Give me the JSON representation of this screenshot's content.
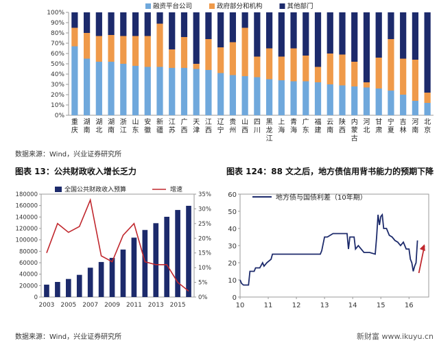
{
  "colors": {
    "light_blue": "#6fa8dc",
    "orange": "#ef9a4a",
    "navy": "#1c2a6b",
    "red": "#c0272d",
    "axis": "#999999",
    "bg": "#ffffff"
  },
  "source_top": "数据来源：Wind，兴业证券研究所",
  "source_bottom": "数据来源：Wind，兴业证券研究所",
  "titles": {
    "left": "图表 13：公共财政收入增长乏力",
    "right": "图表 124：88 文之后，地方债信用背书能力的预期下降"
  },
  "watermark": "新财富 www.ikuyu.cn",
  "chart_data": [
    {
      "type": "bar",
      "stacked": true,
      "legend_position": "top",
      "categories": [
        "重庆",
        "湖南",
        "湖北",
        "湖南",
        "浙江",
        "山东",
        "安徽",
        "新疆",
        "江苏",
        "广西",
        "天津",
        "江西",
        "辽宁",
        "贵州",
        "山西",
        "四川",
        "黑龙江",
        "上海",
        "青海",
        "广东",
        "福建",
        "云南",
        "陕西",
        "内蒙古",
        "河北",
        "甘肃",
        "宁夏",
        "吉林",
        "河南",
        "北京"
      ],
      "series": [
        {
          "name": "融资平台公司",
          "values": [
            67,
            55,
            52,
            52,
            50,
            48,
            47,
            47,
            46,
            46,
            45,
            44,
            41,
            39,
            38,
            37,
            35,
            34,
            33,
            33,
            32,
            30,
            29,
            28,
            27,
            26,
            24,
            20,
            14,
            12
          ]
        },
        {
          "name": "政府部分和机构",
          "values": [
            18,
            25,
            25,
            26,
            27,
            29,
            30,
            42,
            18,
            30,
            5,
            30,
            25,
            32,
            47,
            20,
            30,
            23,
            32,
            25,
            15,
            30,
            30,
            24,
            5,
            30,
            50,
            35,
            40,
            10
          ]
        },
        {
          "name": "其他部门",
          "values": [
            15,
            20,
            23,
            22,
            23,
            23,
            23,
            11,
            36,
            24,
            50,
            26,
            34,
            29,
            15,
            43,
            35,
            43,
            35,
            42,
            53,
            40,
            41,
            48,
            68,
            44,
            26,
            45,
            46,
            78
          ]
        }
      ],
      "ylim": [
        0,
        100
      ],
      "yticks": [
        "0%",
        "10%",
        "20%",
        "30%",
        "40%",
        "50%",
        "60%",
        "70%",
        "80%",
        "90%",
        "100%"
      ]
    },
    {
      "type": "bar",
      "legend_position": "top",
      "x": [
        2003,
        2004,
        2005,
        2006,
        2007,
        2008,
        2009,
        2010,
        2011,
        2012,
        2013,
        2014,
        2015,
        2016
      ],
      "xticks": [
        "2003",
        "2005",
        "2007",
        "2009",
        "2011",
        "2013",
        "2015"
      ],
      "series": [
        {
          "name": "全国公共财政收入预算",
          "type": "bar",
          "axis": "left",
          "values": [
            21700,
            26400,
            31600,
            38800,
            51300,
            61300,
            68500,
            83100,
            103900,
            117300,
            129200,
            140400,
            152300,
            159600
          ]
        },
        {
          "name": "增速",
          "type": "line",
          "axis": "right",
          "values": [
            15,
            25,
            22,
            24,
            33,
            14,
            12,
            21,
            25,
            12,
            11,
            11,
            5,
            2
          ]
        }
      ],
      "ylim_left": [
        0,
        180000
      ],
      "yticks_left": [
        "0",
        "20000",
        "40000",
        "60000",
        "80000",
        "100000",
        "120000",
        "140000",
        "160000",
        "180000"
      ],
      "ylim_right": [
        0,
        35
      ],
      "yticks_right": [
        "0%",
        "5%",
        "10%",
        "15%",
        "20%",
        "25%",
        "30%",
        "35%"
      ]
    },
    {
      "type": "line",
      "legend_position": "top-left",
      "series": [
        {
          "name": "地方债与国债利差（10年期）",
          "points": [
            [
              10.0,
              10
            ],
            [
              10.05,
              8
            ],
            [
              10.12,
              7
            ],
            [
              10.3,
              7
            ],
            [
              10.35,
              15
            ],
            [
              10.5,
              15
            ],
            [
              10.55,
              17
            ],
            [
              10.7,
              17
            ],
            [
              10.8,
              20
            ],
            [
              10.85,
              18
            ],
            [
              10.95,
              20
            ],
            [
              11.1,
              22
            ],
            [
              11.15,
              25
            ],
            [
              11.5,
              25
            ],
            [
              12.0,
              25
            ],
            [
              12.5,
              25
            ],
            [
              12.85,
              25
            ],
            [
              12.9,
              27
            ],
            [
              13.0,
              35
            ],
            [
              13.1,
              35
            ],
            [
              13.2,
              36
            ],
            [
              13.3,
              37
            ],
            [
              13.5,
              37
            ],
            [
              13.8,
              37
            ],
            [
              13.85,
              28
            ],
            [
              13.9,
              35
            ],
            [
              14.05,
              35
            ],
            [
              14.1,
              28
            ],
            [
              14.2,
              30
            ],
            [
              14.4,
              26
            ],
            [
              14.6,
              26
            ],
            [
              14.8,
              25
            ],
            [
              14.85,
              35
            ],
            [
              14.9,
              48
            ],
            [
              14.95,
              42
            ],
            [
              15.0,
              47
            ],
            [
              15.05,
              48
            ],
            [
              15.1,
              40
            ],
            [
              15.2,
              40
            ],
            [
              15.3,
              36
            ],
            [
              15.4,
              35
            ],
            [
              15.5,
              33
            ],
            [
              15.6,
              32
            ],
            [
              15.7,
              30
            ],
            [
              15.8,
              32
            ],
            [
              15.9,
              28
            ],
            [
              16.0,
              28
            ],
            [
              16.05,
              22
            ],
            [
              16.1,
              20
            ],
            [
              16.15,
              15
            ],
            [
              16.2,
              18
            ],
            [
              16.25,
              20
            ],
            [
              16.3,
              33
            ]
          ]
        }
      ],
      "xlim": [
        10,
        16.7
      ],
      "xticks": [
        "10",
        "11",
        "12",
        "13",
        "14",
        "15",
        "16"
      ],
      "ylim": [
        0,
        60
      ],
      "yticks": [
        "0",
        "10",
        "20",
        "30",
        "40",
        "50",
        "60"
      ]
    }
  ]
}
